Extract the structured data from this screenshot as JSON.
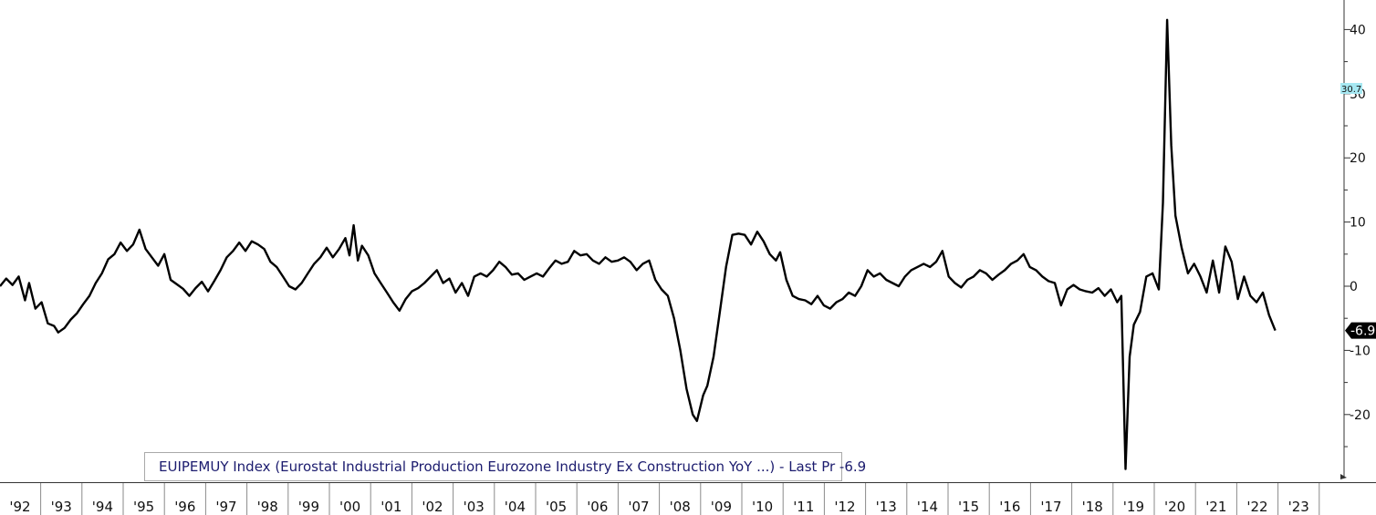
{
  "chart_data": {
    "type": "line",
    "series": [
      {
        "name": "EUIPEMUY Index (Eurostat Industrial Production Eurozone Industry Ex Construction YoY ...) - Last Pr -6.9",
        "color": "#000000",
        "points": [
          [
            "1991.9",
            0
          ],
          [
            "1992.05",
            1.2
          ],
          [
            "1992.2",
            0.2
          ],
          [
            "1992.35",
            1.5
          ],
          [
            "1992.5",
            -2.2
          ],
          [
            "1992.6",
            0.5
          ],
          [
            "1992.75",
            -3.5
          ],
          [
            "1992.9",
            -2.5
          ],
          [
            "1993.05",
            -5.8
          ],
          [
            "1993.2",
            -6.2
          ],
          [
            "1993.3",
            -7.2
          ],
          [
            "1993.45",
            -6.5
          ],
          [
            "1993.6",
            -5.2
          ],
          [
            "1993.75",
            -4.2
          ],
          [
            "1993.9",
            -2.8
          ],
          [
            "1994.05",
            -1.5
          ],
          [
            "1994.2",
            0.5
          ],
          [
            "1994.35",
            2
          ],
          [
            "1994.5",
            4.2
          ],
          [
            "1994.65",
            5
          ],
          [
            "1994.8",
            6.8
          ],
          [
            "1994.95",
            5.5
          ],
          [
            "1995.1",
            6.5
          ],
          [
            "1995.25",
            8.8
          ],
          [
            "1995.4",
            5.8
          ],
          [
            "1995.55",
            4.5
          ],
          [
            "1995.7",
            3.2
          ],
          [
            "1995.85",
            5
          ],
          [
            "1996.0",
            1
          ],
          [
            "1996.15",
            0.3
          ],
          [
            "1996.3",
            -0.4
          ],
          [
            "1996.45",
            -1.5
          ],
          [
            "1996.6",
            -0.3
          ],
          [
            "1996.75",
            0.7
          ],
          [
            "1996.9",
            -0.8
          ],
          [
            "1997.05",
            0.8
          ],
          [
            "1997.2",
            2.5
          ],
          [
            "1997.35",
            4.5
          ],
          [
            "1997.5",
            5.5
          ],
          [
            "1997.65",
            6.8
          ],
          [
            "1997.8",
            5.5
          ],
          [
            "1997.95",
            7
          ],
          [
            "1998.1",
            6.5
          ],
          [
            "1998.25",
            5.8
          ],
          [
            "1998.4",
            3.8
          ],
          [
            "1998.55",
            3
          ],
          [
            "1998.7",
            1.5
          ],
          [
            "1998.85",
            0
          ],
          [
            "1999.0",
            -0.5
          ],
          [
            "1999.15",
            0.5
          ],
          [
            "1999.3",
            2
          ],
          [
            "1999.45",
            3.5
          ],
          [
            "1999.6",
            4.5
          ],
          [
            "1999.75",
            6
          ],
          [
            "1999.9",
            4.5
          ],
          [
            "2000.05",
            5.8
          ],
          [
            "2000.2",
            7.5
          ],
          [
            "2000.3",
            4.8
          ],
          [
            "2000.4",
            9.5
          ],
          [
            "2000.5",
            4
          ],
          [
            "2000.6",
            6.3
          ],
          [
            "2000.75",
            4.8
          ],
          [
            "2000.9",
            2
          ],
          [
            "2001.05",
            0.5
          ],
          [
            "2001.2",
            -1
          ],
          [
            "2001.35",
            -2.5
          ],
          [
            "2001.5",
            -3.8
          ],
          [
            "2001.65",
            -2
          ],
          [
            "2001.8",
            -0.8
          ],
          [
            "2001.95",
            -0.3
          ],
          [
            "2002.1",
            0.5
          ],
          [
            "2002.25",
            1.5
          ],
          [
            "2002.4",
            2.5
          ],
          [
            "2002.55",
            0.5
          ],
          [
            "2002.7",
            1.2
          ],
          [
            "2002.85",
            -1
          ],
          [
            "2003.0",
            0.5
          ],
          [
            "2003.15",
            -1.5
          ],
          [
            "2003.3",
            1.5
          ],
          [
            "2003.45",
            2
          ],
          [
            "2003.6",
            1.5
          ],
          [
            "2003.75",
            2.5
          ],
          [
            "2003.9",
            3.8
          ],
          [
            "2004.05",
            3
          ],
          [
            "2004.2",
            1.8
          ],
          [
            "2004.35",
            2
          ],
          [
            "2004.5",
            1
          ],
          [
            "2004.65",
            1.5
          ],
          [
            "2004.8",
            2
          ],
          [
            "2004.95",
            1.5
          ],
          [
            "2005.1",
            2.8
          ],
          [
            "2005.25",
            4
          ],
          [
            "2005.4",
            3.5
          ],
          [
            "2005.55",
            3.8
          ],
          [
            "2005.7",
            5.5
          ],
          [
            "2005.85",
            4.8
          ],
          [
            "2006.0",
            5
          ],
          [
            "2006.15",
            4
          ],
          [
            "2006.3",
            3.5
          ],
          [
            "2006.45",
            4.5
          ],
          [
            "2006.6",
            3.8
          ],
          [
            "2006.75",
            4
          ],
          [
            "2006.9",
            4.5
          ],
          [
            "2007.05",
            3.8
          ],
          [
            "2007.2",
            2.5
          ],
          [
            "2007.35",
            3.5
          ],
          [
            "2007.5",
            4
          ],
          [
            "2007.65",
            1
          ],
          [
            "2007.8",
            -0.5
          ],
          [
            "2007.95",
            -1.5
          ],
          [
            "2008.1",
            -5
          ],
          [
            "2008.25",
            -10
          ],
          [
            "2008.4",
            -16
          ],
          [
            "2008.55",
            -20
          ],
          [
            "2008.65",
            -21
          ],
          [
            "2008.8",
            -17
          ],
          [
            "2008.9",
            -15.5
          ],
          [
            "2009.05",
            -11
          ],
          [
            "2009.2",
            -4
          ],
          [
            "2009.35",
            3
          ],
          [
            "2009.5",
            8
          ],
          [
            "2009.65",
            8.2
          ],
          [
            "2009.8",
            8
          ],
          [
            "2009.95",
            6.5
          ],
          [
            "2010.1",
            8.5
          ],
          [
            "2010.25",
            7
          ],
          [
            "2010.4",
            5
          ],
          [
            "2010.55",
            4
          ],
          [
            "2010.65",
            5.3
          ],
          [
            "2010.8",
            1
          ],
          [
            "2010.95",
            -1.5
          ],
          [
            "2011.1",
            -2
          ],
          [
            "2011.25",
            -2.2
          ],
          [
            "2011.4",
            -2.8
          ],
          [
            "2011.55",
            -1.5
          ],
          [
            "2011.7",
            -3
          ],
          [
            "2011.85",
            -3.5
          ],
          [
            "2012.0",
            -2.5
          ],
          [
            "2012.15",
            -2
          ],
          [
            "2012.3",
            -1
          ],
          [
            "2012.45",
            -1.5
          ],
          [
            "2012.6",
            0
          ],
          [
            "2012.75",
            2.5
          ],
          [
            "2012.9",
            1.5
          ],
          [
            "2013.05",
            2
          ],
          [
            "2013.2",
            1
          ],
          [
            "2013.35",
            0.5
          ],
          [
            "2013.5",
            0
          ],
          [
            "2013.65",
            1.5
          ],
          [
            "2013.8",
            2.5
          ],
          [
            "2013.95",
            3
          ],
          [
            "2014.1",
            3.5
          ],
          [
            "2014.25",
            3
          ],
          [
            "2014.4",
            3.8
          ],
          [
            "2014.55",
            5.5
          ],
          [
            "2014.7",
            1.5
          ],
          [
            "2014.85",
            0.5
          ],
          [
            "2015.0",
            -0.2
          ],
          [
            "2015.15",
            1
          ],
          [
            "2015.3",
            1.5
          ],
          [
            "2015.45",
            2.5
          ],
          [
            "2015.6",
            2
          ],
          [
            "2015.75",
            1
          ],
          [
            "2015.9",
            1.8
          ],
          [
            "2016.05",
            2.5
          ],
          [
            "2016.2",
            3.5
          ],
          [
            "2016.35",
            4
          ],
          [
            "2016.5",
            5
          ],
          [
            "2016.65",
            3
          ],
          [
            "2016.8",
            2.5
          ],
          [
            "2016.95",
            1.5
          ],
          [
            "2017.1",
            0.8
          ],
          [
            "2017.25",
            0.5
          ],
          [
            "2017.4",
            -3
          ],
          [
            "2017.55",
            -0.5
          ],
          [
            "2017.7",
            0.2
          ],
          [
            "2017.85",
            -0.5
          ],
          [
            "2018.0",
            -0.8
          ],
          [
            "2018.15",
            -1
          ],
          [
            "2018.3",
            -0.3
          ],
          [
            "2018.45",
            -1.5
          ],
          [
            "2018.6",
            -0.5
          ],
          [
            "2018.75",
            -2.5
          ],
          [
            "2018.85",
            -1.5
          ],
          [
            "2018.95",
            -28.5
          ],
          [
            "2019.05",
            -11
          ],
          [
            "2019.15",
            -6
          ],
          [
            "2019.3",
            -4
          ],
          [
            "2019.45",
            1.5
          ],
          [
            "2019.6",
            2
          ],
          [
            "2019.75",
            -0.5
          ],
          [
            "2019.85",
            13
          ],
          [
            "2019.95",
            41.5
          ],
          [
            "2020.05",
            22
          ],
          [
            "2020.15",
            11
          ],
          [
            "2020.3",
            6
          ],
          [
            "2020.45",
            2
          ],
          [
            "2020.6",
            3.5
          ],
          [
            "2020.75",
            1.5
          ],
          [
            "2020.9",
            -1
          ],
          [
            "2021.05",
            4
          ],
          [
            "2021.2",
            -1
          ],
          [
            "2021.35",
            6.2
          ],
          [
            "2021.5",
            3.8
          ],
          [
            "2021.65",
            -2
          ],
          [
            "2021.8",
            1.5
          ],
          [
            "2021.95",
            -1.5
          ],
          [
            "2022.1",
            -2.5
          ],
          [
            "2022.25",
            -1
          ],
          [
            "2022.4",
            -4.5
          ],
          [
            "2022.55",
            -6.9
          ]
        ]
      }
    ],
    "x_ticks": [
      "'92",
      "'93",
      "'94",
      "'95",
      "'96",
      "'97",
      "'98",
      "'99",
      "'00",
      "'01",
      "'02",
      "'03",
      "'04",
      "'05",
      "'06",
      "'07",
      "'08",
      "'09",
      "'10",
      "'11",
      "'12",
      "'13",
      "'14",
      "'15",
      "'16",
      "'17",
      "'18",
      "'19",
      "'20",
      "'21",
      "'22",
      "'23"
    ],
    "y_ticks": [
      "40",
      "30",
      "20",
      "10",
      "0",
      "-10",
      "-20"
    ],
    "ylim": [
      -30,
      44.5
    ],
    "last_value_label": "-6.9",
    "marker_label": "30.7",
    "marker_color": "#a6e8f2",
    "grid": false,
    "legend_position": "bottom-left",
    "line_color": "#000000"
  }
}
